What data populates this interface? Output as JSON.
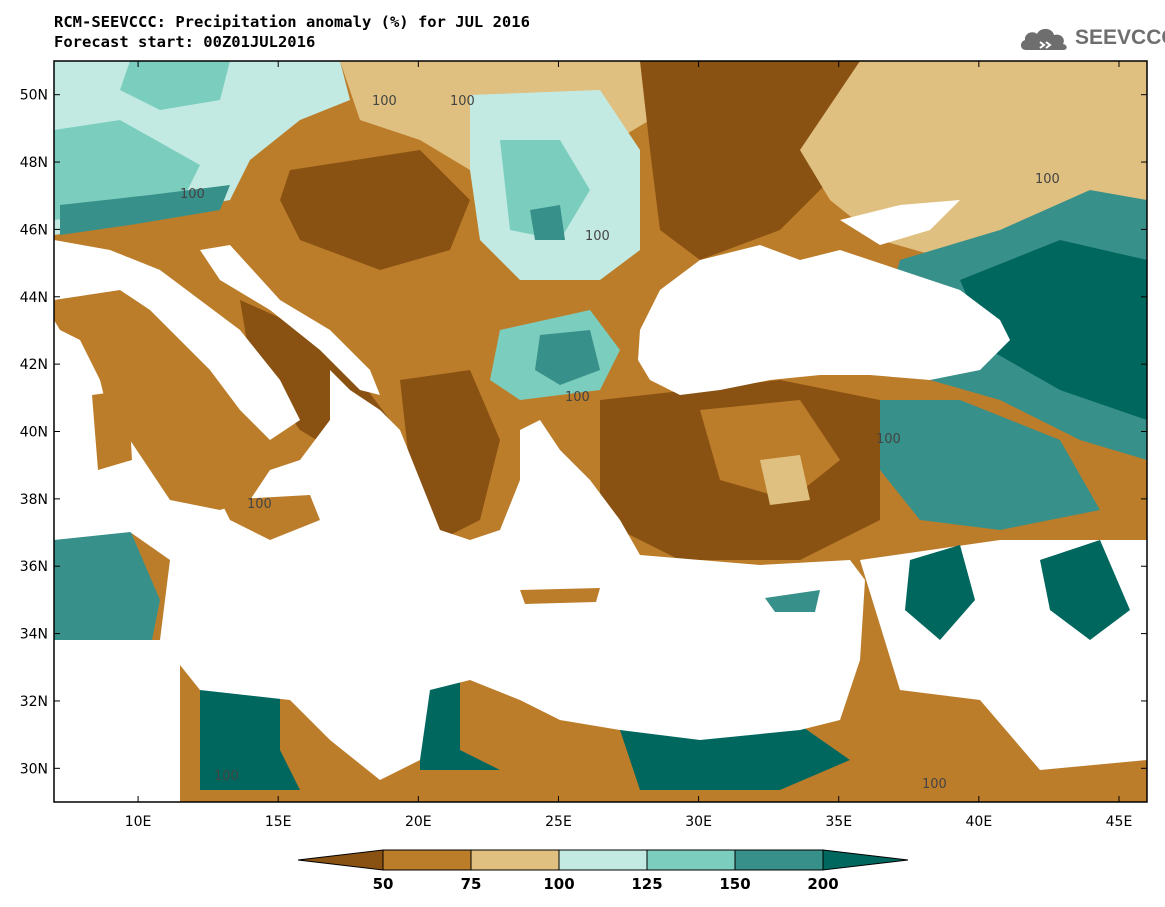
{
  "title": {
    "line1": "RCM-SEEVCCC: Precipitation anomaly (%) for JUL 2016",
    "line2": "Forecast start: 00Z01JUL2016"
  },
  "logo": {
    "text": "SEEVCCC",
    "icon": "cloud-icon"
  },
  "map": {
    "projection": "lat-lon",
    "lon_range": [
      7,
      46
    ],
    "lat_range": [
      29,
      51
    ],
    "grid": false,
    "x_ticks": [
      "10E",
      "15E",
      "20E",
      "25E",
      "30E",
      "35E",
      "40E",
      "45E"
    ],
    "y_ticks": [
      "50N",
      "48N",
      "46N",
      "44N",
      "42N",
      "40N",
      "38N",
      "36N",
      "34N",
      "32N",
      "30N"
    ],
    "contour_labels": [
      "100",
      "100",
      "100",
      "100",
      "100",
      "100",
      "100",
      "100",
      "100",
      "100"
    ]
  },
  "colorbar": {
    "levels": [
      "50",
      "75",
      "100",
      "125",
      "150",
      "200"
    ],
    "colors": [
      "#8a5212",
      "#bc7d2b",
      "#e0c080",
      "#c2eae2",
      "#7bcdbe",
      "#379089",
      "#00675e"
    ]
  }
}
